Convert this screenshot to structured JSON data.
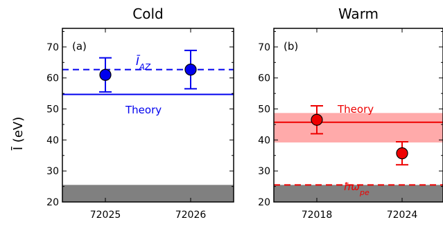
{
  "chart_data": [
    {
      "type": "scatter",
      "title": "Cold",
      "panel_label": "(a)",
      "ylabel": "Ī (eV)",
      "xlabel": "",
      "ylim": [
        20,
        76
      ],
      "categories": [
        "72025",
        "72026"
      ],
      "yticks": [
        20,
        30,
        40,
        50,
        60,
        70
      ],
      "points": [
        {
          "x": "72025",
          "y": 61.0,
          "err_low": 5.5,
          "err_high": 5.5
        },
        {
          "x": "72026",
          "y": 62.7,
          "err_low": 6.2,
          "err_high": 6.2
        }
      ],
      "point_color": "#0000ee",
      "reference_lines": [
        {
          "label": "Ī_AZ",
          "value": 62.7,
          "style": "dashed",
          "color": "#0000ee"
        },
        {
          "label": "Theory",
          "value": 54.7,
          "style": "solid",
          "color": "#0000ee"
        }
      ],
      "shaded_band": {
        "from": 20,
        "to": 25.5,
        "color": "#808080"
      }
    },
    {
      "type": "scatter",
      "title": "Warm",
      "panel_label": "(b)",
      "ylabel": "",
      "xlabel": "",
      "ylim": [
        20,
        76
      ],
      "categories": [
        "72018",
        "72024"
      ],
      "yticks": [
        20,
        30,
        40,
        50,
        60,
        70
      ],
      "points": [
        {
          "x": "72018",
          "y": 46.5,
          "err_low": 4.5,
          "err_high": 4.5
        },
        {
          "x": "72024",
          "y": 35.7,
          "err_low": 3.7,
          "err_high": 3.7
        }
      ],
      "point_color": "#ee0000",
      "reference_lines": [
        {
          "label": "Theory",
          "value": 45.7,
          "style": "solid",
          "color": "#ee0000",
          "band": [
            39.2,
            48.7
          ],
          "band_color": "#ffaaaa"
        },
        {
          "label": "ħω_pe",
          "value": 25.5,
          "style": "dashed",
          "color": "#ee0000"
        }
      ],
      "shaded_band": {
        "from": 20,
        "to": 25.5,
        "color": "#808080"
      }
    }
  ]
}
